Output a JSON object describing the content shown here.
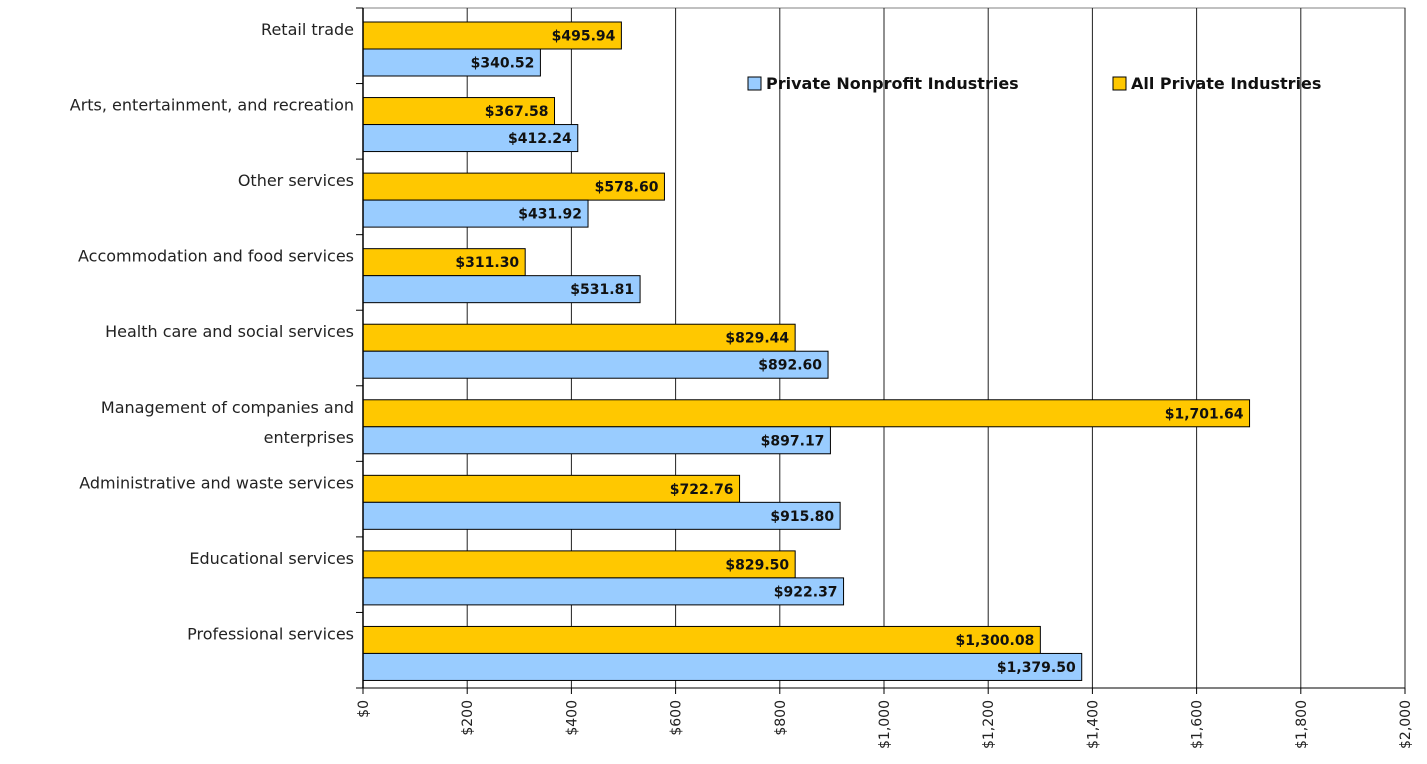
{
  "chart_data": {
    "type": "bar",
    "orientation": "horizontal",
    "categories": [
      [
        "Retail trade"
      ],
      [
        "Arts, entertainment, and recreation"
      ],
      [
        "Other services"
      ],
      [
        "Accommodation and food services"
      ],
      [
        "Health care and social services"
      ],
      [
        "Management of companies and",
        "enterprises"
      ],
      [
        "Administrative and waste services"
      ],
      [
        "Educational services"
      ],
      [
        "Professional services"
      ]
    ],
    "series": [
      {
        "name": "All Private Industries",
        "color": "#FFC800",
        "values": [
          495.94,
          367.58,
          578.6,
          311.3,
          829.44,
          1701.64,
          722.76,
          829.5,
          1300.08
        ],
        "labels": [
          "$495.94",
          "$367.58",
          "$578.60",
          "$311.30",
          "$829.44",
          "$1,701.64",
          "$722.76",
          "$829.50",
          "$1,300.08"
        ]
      },
      {
        "name": "Private Nonprofit Industries",
        "color": "#99CCFF",
        "values": [
          340.52,
          412.24,
          431.92,
          531.81,
          892.6,
          897.17,
          915.8,
          922.37,
          1379.5
        ],
        "labels": [
          "$340.52",
          "$412.24",
          "$431.92",
          "$531.81",
          "$892.60",
          "$897.17",
          "$915.80",
          "$922.37",
          "$1,379.50"
        ]
      }
    ],
    "xlim": [
      0,
      2000
    ],
    "x_ticks": [
      0,
      200,
      400,
      600,
      800,
      1000,
      1200,
      1400,
      1600,
      1800,
      2000
    ],
    "x_tick_labels": [
      "$0",
      "$200",
      "$400",
      "$600",
      "$800",
      "$1,000",
      "$1,200",
      "$1,400",
      "$1,600",
      "$1,800",
      "$2,000"
    ],
    "legend": {
      "placement": "top-right",
      "items": [
        {
          "name": "Private Nonprofit Industries",
          "color": "#99CCFF"
        },
        {
          "name": "All Private Industries",
          "color": "#FFC800"
        }
      ]
    },
    "grid": true
  }
}
